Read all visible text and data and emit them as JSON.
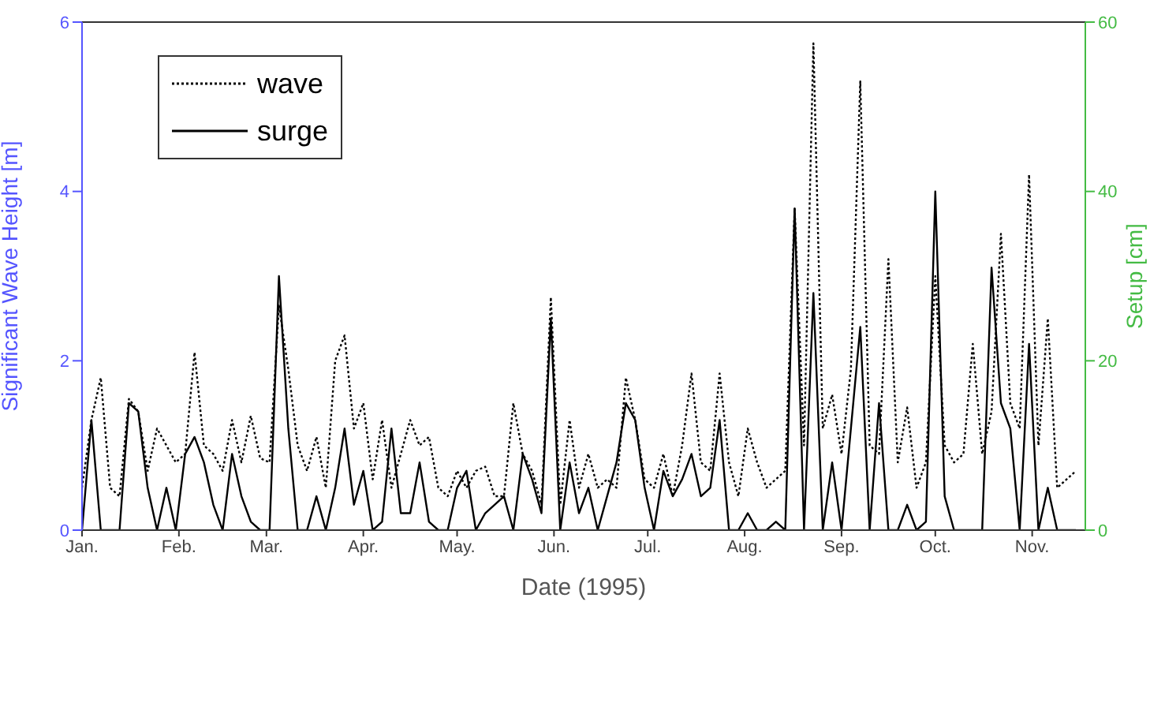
{
  "chart_data": {
    "type": "line",
    "xlabel": "Date (1995)",
    "ylabel": "Significant Wave Height [m]",
    "y2label": "Setup [cm]",
    "x": [
      "1995-01-01",
      "1995-01-04",
      "1995-01-07",
      "1995-01-10",
      "1995-01-13",
      "1995-01-16",
      "1995-01-19",
      "1995-01-22",
      "1995-01-25",
      "1995-01-28",
      "1995-01-31",
      "1995-02-03",
      "1995-02-06",
      "1995-02-09",
      "1995-02-12",
      "1995-02-15",
      "1995-02-18",
      "1995-02-21",
      "1995-02-24",
      "1995-02-27",
      "1995-03-02",
      "1995-03-05",
      "1995-03-08",
      "1995-03-11",
      "1995-03-14",
      "1995-03-17",
      "1995-03-20",
      "1995-03-23",
      "1995-03-26",
      "1995-03-29",
      "1995-04-01",
      "1995-04-04",
      "1995-04-07",
      "1995-04-10",
      "1995-04-13",
      "1995-04-16",
      "1995-04-19",
      "1995-04-22",
      "1995-04-25",
      "1995-04-28",
      "1995-05-01",
      "1995-05-04",
      "1995-05-07",
      "1995-05-10",
      "1995-05-13",
      "1995-05-16",
      "1995-05-19",
      "1995-05-22",
      "1995-05-25",
      "1995-05-28",
      "1995-05-31",
      "1995-06-03",
      "1995-06-06",
      "1995-06-09",
      "1995-06-12",
      "1995-06-15",
      "1995-06-18",
      "1995-06-21",
      "1995-06-24",
      "1995-06-27",
      "1995-06-30",
      "1995-07-03",
      "1995-07-06",
      "1995-07-09",
      "1995-07-12",
      "1995-07-15",
      "1995-07-18",
      "1995-07-21",
      "1995-07-24",
      "1995-07-27",
      "1995-07-30",
      "1995-08-02",
      "1995-08-05",
      "1995-08-08",
      "1995-08-11",
      "1995-08-14",
      "1995-08-17",
      "1995-08-20",
      "1995-08-23",
      "1995-08-26",
      "1995-08-29",
      "1995-09-01",
      "1995-09-04",
      "1995-09-07",
      "1995-09-10",
      "1995-09-13",
      "1995-09-16",
      "1995-09-19",
      "1995-09-22",
      "1995-09-25",
      "1995-09-28",
      "1995-10-01",
      "1995-10-04",
      "1995-10-07",
      "1995-10-10",
      "1995-10-13",
      "1995-10-16",
      "1995-10-19",
      "1995-10-22",
      "1995-10-25",
      "1995-10-28",
      "1995-10-31",
      "1995-11-03",
      "1995-11-06",
      "1995-11-09",
      "1995-11-12",
      "1995-11-15"
    ],
    "series": [
      {
        "name": "wave",
        "color": "#000000",
        "line_style": "dotted",
        "values": [
          0.5,
          1.3,
          1.8,
          0.5,
          0.4,
          1.55,
          1.4,
          0.7,
          1.2,
          1.0,
          0.8,
          0.9,
          2.1,
          1.0,
          0.9,
          0.7,
          1.3,
          0.8,
          1.35,
          0.85,
          0.8,
          2.65,
          1.9,
          1.0,
          0.7,
          1.1,
          0.5,
          2.0,
          2.3,
          1.2,
          1.5,
          0.6,
          1.3,
          0.5,
          0.9,
          1.3,
          1.0,
          1.1,
          0.5,
          0.4,
          0.7,
          0.5,
          0.7,
          0.75,
          0.4,
          0.4,
          1.5,
          0.9,
          0.7,
          0.3,
          2.75,
          0.3,
          1.3,
          0.5,
          0.9,
          0.5,
          0.6,
          0.5,
          1.8,
          1.3,
          0.6,
          0.5,
          0.9,
          0.4,
          1.0,
          1.85,
          0.8,
          0.7,
          1.85,
          0.8,
          0.4,
          1.2,
          0.8,
          0.5,
          0.6,
          0.7,
          3.8,
          1.0,
          5.75,
          1.2,
          1.6,
          0.9,
          1.9,
          5.3,
          1.0,
          0.9,
          3.2,
          0.8,
          1.45,
          0.5,
          0.8,
          3.0,
          1.0,
          0.8,
          0.9,
          2.2,
          0.9,
          1.4,
          3.5,
          1.5,
          1.2,
          4.2,
          1.0,
          2.5,
          0.5,
          0.6,
          0.7
        ]
      },
      {
        "name": "surge",
        "color": "#000000",
        "line_style": "solid",
        "axis": "y2",
        "values": [
          0,
          13,
          0,
          0,
          0,
          15,
          14,
          5,
          0,
          5,
          0,
          9,
          11,
          8,
          3,
          0,
          9,
          4,
          1,
          0,
          0,
          30,
          12,
          0,
          0,
          4,
          0,
          5,
          12,
          3,
          7,
          0,
          1,
          12,
          2,
          2,
          8,
          1,
          0,
          0,
          5,
          7,
          0,
          2,
          3,
          4,
          0,
          9,
          6,
          2,
          25,
          0,
          8,
          2,
          5,
          0,
          4,
          8,
          15,
          13,
          5,
          0,
          7,
          4,
          6,
          9,
          4,
          5,
          13,
          0,
          0,
          2,
          0,
          0,
          1,
          0,
          38,
          0,
          28,
          0,
          8,
          0,
          12,
          24,
          0,
          15,
          0,
          0,
          3,
          0,
          1,
          40,
          4,
          0,
          0,
          0,
          0,
          31,
          15,
          12,
          0,
          22,
          0,
          5,
          0,
          0,
          0
        ]
      }
    ],
    "xlim": [
      "1995-01-01",
      "1995-11-18"
    ],
    "xticks": [
      {
        "value": "1995-01-01",
        "label": "Jan."
      },
      {
        "value": "1995-02-01",
        "label": "Feb."
      },
      {
        "value": "1995-03-01",
        "label": "Mar."
      },
      {
        "value": "1995-04-01",
        "label": "Apr."
      },
      {
        "value": "1995-05-01",
        "label": "May."
      },
      {
        "value": "1995-06-01",
        "label": "Jun."
      },
      {
        "value": "1995-07-01",
        "label": "Jul."
      },
      {
        "value": "1995-08-01",
        "label": "Aug."
      },
      {
        "value": "1995-09-01",
        "label": "Sep."
      },
      {
        "value": "1995-10-01",
        "label": "Oct."
      },
      {
        "value": "1995-11-01",
        "label": "Nov."
      }
    ],
    "ylim": [
      0,
      6
    ],
    "yticks": [
      0,
      2,
      4,
      6
    ],
    "y2lim": [
      0,
      60
    ],
    "y2ticks": [
      0,
      20,
      40,
      60
    ],
    "legend": "top left",
    "grid": false
  }
}
